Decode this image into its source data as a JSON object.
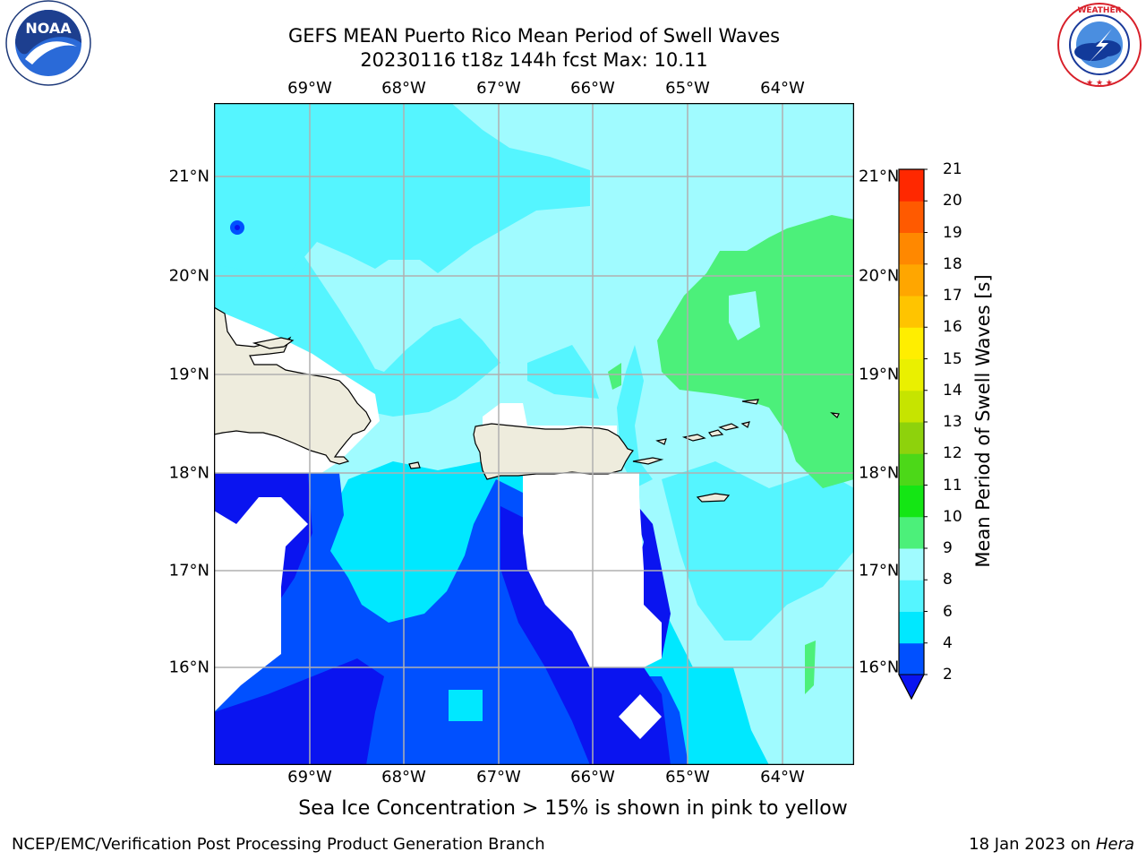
{
  "header": {
    "title_line1": "GEFS MEAN Puerto Rico Mean Period of Swell Waves",
    "title_line2": "20230116 t18z 144h fcst   Max: 10.11"
  },
  "logos": {
    "noaa_text": "NOAA",
    "noaa_ring": "NATIONAL OCEANIC AND ATMOSPHERIC ADMINISTRATION · U.S. DEPARTMENT OF COMMERCE",
    "nws_ring": "NATIONAL WEATHER SERVICE"
  },
  "map": {
    "lon_ticks": [
      "69°W",
      "68°W",
      "67°W",
      "66°W",
      "65°W",
      "64°W"
    ],
    "lat_ticks": [
      "21°N",
      "20°N",
      "19°N",
      "18°N",
      "17°N",
      "16°N"
    ],
    "region": "Puerto Rico",
    "extent": {
      "lon_min": -70.0,
      "lon_max": -63.25,
      "lat_min": 15.0,
      "lat_max": 21.75
    }
  },
  "colorbar": {
    "title": "Mean Period of Swell Waves [s]",
    "levels": [
      "2",
      "4",
      "6",
      "8",
      "9",
      "10",
      "11",
      "12",
      "13",
      "14",
      "15",
      "16",
      "17",
      "18",
      "19",
      "20",
      "21"
    ],
    "colors": [
      "#0050ff",
      "#00e8ff",
      "#55f5ff",
      "#a0fbff",
      "#4cf07a",
      "#14e614",
      "#4cd818",
      "#8ed20c",
      "#c6e400",
      "#eaf000",
      "#ffee00",
      "#ffc400",
      "#ffa600",
      "#ff8800",
      "#ff5a00",
      "#ff2800"
    ],
    "under_color": "#0a14f0",
    "colors_note": "colors match the visible bands from 2 to 21"
  },
  "colors": {
    "land": "#eeecdd",
    "grid": "#b0b0b0"
  },
  "caption": "Sea Ice Concentration > 15% is shown in pink to yellow",
  "footer": {
    "left": "NCEP/EMC/Verification Post Processing Product Generation Branch",
    "right_prefix": "18 Jan 2023 on ",
    "right_machine": "Hera"
  }
}
